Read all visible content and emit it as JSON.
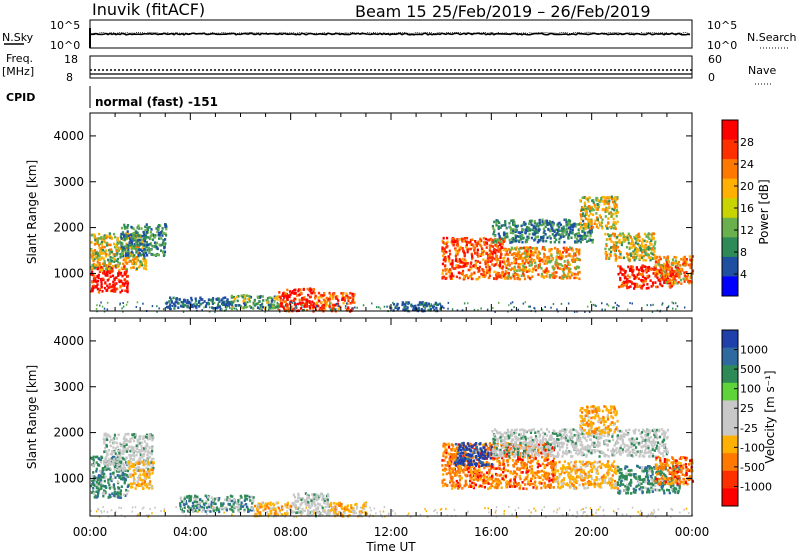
{
  "header": {
    "station": "Inuvik (fitACF)",
    "beam": "Beam 15",
    "date_range": "25/Feb/2019 – 26/Feb/2019"
  },
  "noise_panel": {
    "left_label": "N.Sky",
    "left_ticks": [
      "10^5",
      "10^0"
    ],
    "right_label": "N.Search",
    "right_ticks": [
      "10^5",
      "10^0"
    ]
  },
  "freq_panel": {
    "left_label_line1": "Freq.",
    "left_label_line2": "[MHz]",
    "left_ticks": [
      "18",
      "8"
    ],
    "right_label": "Nave",
    "right_ticks": [
      "60",
      "0"
    ]
  },
  "cpid": {
    "label": "CPID",
    "mode": "normal (fast) -151"
  },
  "colors": {
    "power": [
      "#0000ff",
      "#1f4fa0",
      "#2e8b57",
      "#6ab04c",
      "#c8d400",
      "#ffb000",
      "#ff7800",
      "#ff3000",
      "#ff0000"
    ],
    "velocity": [
      "#1f3faa",
      "#2e6aa0",
      "#2e8b57",
      "#5fd33a",
      "#c8c8c8",
      "#c8c8c8",
      "#ffb000",
      "#ff7800",
      "#ff3000",
      "#ff0000"
    ]
  },
  "chart_data": [
    {
      "type": "heatmap",
      "name": "power",
      "ylabel": "Slant Range [km]",
      "xlabel": "",
      "colorbar_label": "Power [dB]",
      "colorbar_ticks": [
        "28",
        "24",
        "20",
        "16",
        "12",
        "8",
        "4"
      ],
      "ylim": [
        180,
        4500
      ],
      "y_ticks": [
        "4000",
        "3000",
        "2000",
        "1000"
      ],
      "xlim": [
        0,
        24
      ],
      "regions": [
        {
          "t": [
            0.0,
            1.5
          ],
          "r": [
            600,
            1200
          ],
          "level": 28
        },
        {
          "t": [
            0.0,
            2.2
          ],
          "r": [
            1100,
            1900
          ],
          "level": 16
        },
        {
          "t": [
            1.2,
            3.0
          ],
          "r": [
            1400,
            2100
          ],
          "level": 8
        },
        {
          "t": [
            3.0,
            5.5
          ],
          "r": [
            250,
            500
          ],
          "level": 4
        },
        {
          "t": [
            5.5,
            7.5
          ],
          "r": [
            250,
            550
          ],
          "level": 12
        },
        {
          "t": [
            7.5,
            9.0
          ],
          "r": [
            200,
            700
          ],
          "level": 28
        },
        {
          "t": [
            9.0,
            10.5
          ],
          "r": [
            200,
            600
          ],
          "level": 24
        },
        {
          "t": [
            12.0,
            14.0
          ],
          "r": [
            200,
            400
          ],
          "level": 4
        },
        {
          "t": [
            14.0,
            16.5
          ],
          "r": [
            900,
            1800
          ],
          "level": 24
        },
        {
          "t": [
            16.5,
            19.5
          ],
          "r": [
            900,
            1600
          ],
          "level": 20
        },
        {
          "t": [
            16.0,
            20.0
          ],
          "r": [
            1700,
            2200
          ],
          "level": 8
        },
        {
          "t": [
            19.5,
            21.0
          ],
          "r": [
            2000,
            2700
          ],
          "level": 16
        },
        {
          "t": [
            20.5,
            22.5
          ],
          "r": [
            1300,
            1900
          ],
          "level": 16
        },
        {
          "t": [
            21.0,
            23.5
          ],
          "r": [
            700,
            1200
          ],
          "level": 28
        },
        {
          "t": [
            22.5,
            24.0
          ],
          "r": [
            800,
            1400
          ],
          "level": 20
        }
      ]
    },
    {
      "type": "heatmap",
      "name": "velocity",
      "ylabel": "Slant Range [km]",
      "xlabel": "Time UT",
      "colorbar_label": "Velocity [m s⁻¹]",
      "colorbar_ticks": [
        "1000",
        "500",
        "100",
        "25",
        "-25",
        "-100",
        "-500",
        "-1000"
      ],
      "ylim": [
        180,
        4500
      ],
      "y_ticks": [
        "4000",
        "3000",
        "2000",
        "1000"
      ],
      "xlim": [
        0,
        24
      ],
      "x_ticks": [
        "00:00",
        "04:00",
        "08:00",
        "12:00",
        "16:00",
        "20:00",
        "00:00"
      ],
      "regions": [
        {
          "t": [
            0.0,
            1.5
          ],
          "r": [
            600,
            1500
          ],
          "level": 100
        },
        {
          "t": [
            0.5,
            2.5
          ],
          "r": [
            1200,
            2000
          ],
          "level": 25
        },
        {
          "t": [
            1.5,
            2.5
          ],
          "r": [
            800,
            1400
          ],
          "level": -100
        },
        {
          "t": [
            3.5,
            6.5
          ],
          "r": [
            300,
            650
          ],
          "level": 100
        },
        {
          "t": [
            6.5,
            8.0
          ],
          "r": [
            200,
            500
          ],
          "level": -100
        },
        {
          "t": [
            8.0,
            9.5
          ],
          "r": [
            200,
            700
          ],
          "level": 25
        },
        {
          "t": [
            9.5,
            11.0
          ],
          "r": [
            200,
            500
          ],
          "level": -100
        },
        {
          "t": [
            14.0,
            18.5
          ],
          "r": [
            800,
            1800
          ],
          "level": -500
        },
        {
          "t": [
            14.5,
            16.0
          ],
          "r": [
            1300,
            1800
          ],
          "level": 1000
        },
        {
          "t": [
            16.0,
            23.0
          ],
          "r": [
            1500,
            2100
          ],
          "level": 25
        },
        {
          "t": [
            19.5,
            21.0
          ],
          "r": [
            2000,
            2600
          ],
          "level": -100
        },
        {
          "t": [
            18.5,
            21.0
          ],
          "r": [
            800,
            1400
          ],
          "level": -100
        },
        {
          "t": [
            21.0,
            23.5
          ],
          "r": [
            700,
            1300
          ],
          "level": 100
        },
        {
          "t": [
            22.5,
            24.0
          ],
          "r": [
            900,
            1500
          ],
          "level": -500
        }
      ]
    }
  ]
}
